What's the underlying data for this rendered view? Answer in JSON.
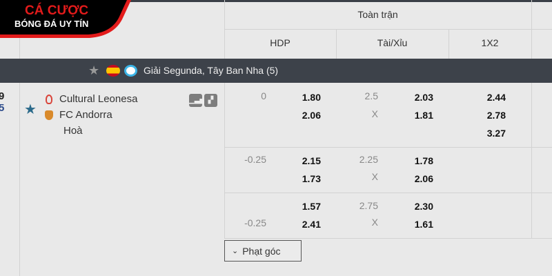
{
  "logo": {
    "line1": "CÁ CƯỢC",
    "line2": "BÓNG ĐÁ UY TÍN"
  },
  "header": {
    "group": "Toàn trận",
    "columns": [
      "HDP",
      "Tài/Xỉu",
      "1X2"
    ]
  },
  "league": {
    "name": "Giải Segunda, Tây Ban Nha (5)",
    "flag": "spain-flag",
    "icon": "laliga-icon"
  },
  "match": {
    "time_partial": [
      "9",
      "5"
    ],
    "home": "Cultural Leonesa",
    "away": "FC Andorra",
    "draw": "Hoà",
    "rows": [
      {
        "hdp_line_home": "0",
        "hdp_line_away": "",
        "hdp_home": "1.80",
        "hdp_away": "2.06",
        "ou_line": "2.5",
        "ou_x": "X",
        "ou_over": "2.03",
        "ou_under": "1.81",
        "x12": [
          "2.44",
          "2.78",
          "3.27"
        ]
      },
      {
        "hdp_line_home": "-0.25",
        "hdp_line_away": "",
        "hdp_home": "2.15",
        "hdp_away": "1.73",
        "ou_line": "2.25",
        "ou_x": "X",
        "ou_over": "1.78",
        "ou_under": "2.06"
      },
      {
        "hdp_line_home": "",
        "hdp_line_away": "-0.25",
        "hdp_home": "1.57",
        "hdp_away": "2.41",
        "ou_line": "2.75",
        "ou_x": "X",
        "ou_over": "2.30",
        "ou_under": "1.61"
      }
    ]
  },
  "corner_button": "Phạt góc",
  "colors": {
    "league_bar": "#3d424a",
    "logo_red": "#e31b1b",
    "favorite_star": "#2b6a8a"
  }
}
